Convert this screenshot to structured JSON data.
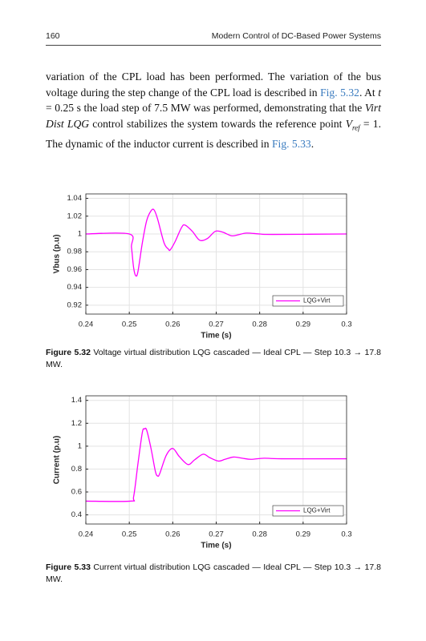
{
  "header": {
    "page_number": "160",
    "title": "Modern Control of DC-Based Power Systems"
  },
  "body": {
    "parts": [
      "variation of the CPL load has been performed. The variation of the bus voltage during the step change of the CPL load is described in ",
      "Fig. 5.32",
      ". At ",
      "t",
      " = 0.25 s the load step of 7.5 MW was performed, demonstrating that the ",
      "Virt Dist LQG",
      " control stabilizes the system towards the reference point ",
      "V",
      "ref",
      " = 1. The dynamic of the inductor current is described in ",
      "Fig. 5.33",
      "."
    ]
  },
  "chart_data": [
    {
      "type": "line",
      "xlabel": "Time (s)",
      "ylabel": "Vbus (p.u)",
      "x": [
        0.24,
        0.25,
        0.2505,
        0.251,
        0.2515,
        0.252,
        0.253,
        0.254,
        0.255,
        0.2557,
        0.2565,
        0.258,
        0.259,
        0.2594,
        0.2605,
        0.262,
        0.2628,
        0.2645,
        0.2662,
        0.268,
        0.2698,
        0.2715,
        0.2735,
        0.275,
        0.277,
        0.28,
        0.283,
        0.3
      ],
      "series": [
        {
          "name": "LQG+Virt",
          "color": "#ff00ff",
          "values": [
            1,
            1,
            0.985,
            0.962,
            0.953,
            0.958,
            0.99,
            1.015,
            1.026,
            1.027,
            1.017,
            0.99,
            0.983,
            0.982,
            0.991,
            1.007,
            1.01,
            1.003,
            0.993,
            0.995,
            1.003,
            1.002,
            0.998,
            0.999,
            1.001,
            1,
            0.9995,
            1
          ]
        }
      ],
      "xlim": [
        0.24,
        0.3
      ],
      "xticks": [
        0.24,
        0.25,
        0.26,
        0.27,
        0.28,
        0.29,
        0.3
      ],
      "ylim": [
        0.91,
        1.045
      ],
      "yticks": [
        0.92,
        0.94,
        0.96,
        0.98,
        1,
        1.02,
        1.04
      ],
      "grid": true,
      "legend": "southeast",
      "caption": {
        "label": "Figure 5.32",
        "text": "Voltage virtual distribution LQG cascaded — Ideal CPL — Step 10.3 → 17.8 MW."
      }
    },
    {
      "type": "line",
      "xlabel": "Time (s)",
      "ylabel": "Current (p.u)",
      "x": [
        0.24,
        0.2502,
        0.251,
        0.252,
        0.253,
        0.2535,
        0.254,
        0.255,
        0.256,
        0.2565,
        0.257,
        0.2585,
        0.26,
        0.2615,
        0.2635,
        0.265,
        0.267,
        0.2685,
        0.2705,
        0.272,
        0.274,
        0.276,
        0.278,
        0.281,
        0.285,
        0.3
      ],
      "series": [
        {
          "name": "LQG+Virt",
          "color": "#ff00ff",
          "values": [
            0.52,
            0.52,
            0.56,
            0.85,
            1.12,
            1.15,
            1.14,
            0.98,
            0.78,
            0.74,
            0.76,
            0.92,
            0.98,
            0.91,
            0.84,
            0.88,
            0.93,
            0.9,
            0.87,
            0.885,
            0.905,
            0.895,
            0.885,
            0.895,
            0.89,
            0.89
          ]
        }
      ],
      "xlim": [
        0.24,
        0.3
      ],
      "xticks": [
        0.24,
        0.25,
        0.26,
        0.27,
        0.28,
        0.29,
        0.3
      ],
      "ylim": [
        0.32,
        1.44
      ],
      "yticks": [
        0.4,
        0.6,
        0.8,
        1,
        1.2,
        1.4
      ],
      "grid": true,
      "legend": "southeast",
      "caption": {
        "label": "Figure 5.33",
        "text": "Current virtual distribution LQG cascaded — Ideal CPL — Step 10.3 → 17.8 MW."
      }
    }
  ]
}
